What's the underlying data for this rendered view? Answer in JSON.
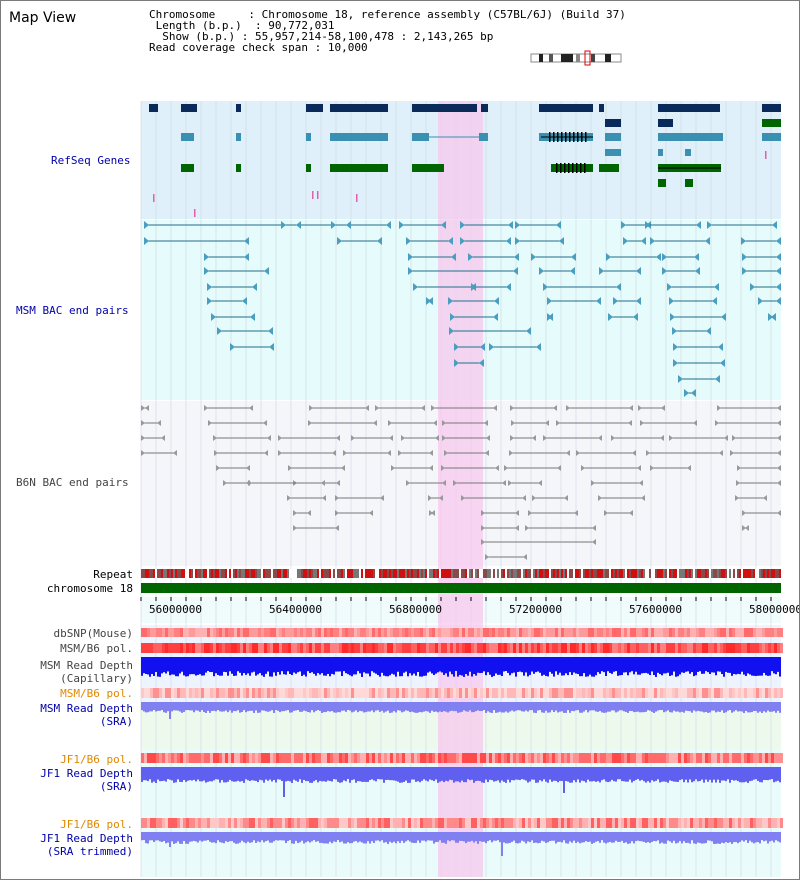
{
  "title": "Map View",
  "header": {
    "chromosome_label": "Chromosome",
    "chromosome_value": "Chromosome 18, reference assembly (C57BL/6J) (Build 37)",
    "length_label": "Length (b.p.)",
    "length_value": "90,772,031",
    "show_label": "Show (b.p.)",
    "show_value": "55,957,214-58,100,478 : 2,143,265 bp",
    "coverage_label": "Read coverage check span",
    "coverage_value": "10,000"
  },
  "tracks": {
    "refseq": "RefSeq Genes",
    "msm_bac": "MSM BAC end pairs",
    "b6n_bac": "B6N BAC end pairs",
    "repeat": "Repeat",
    "chromosome": "chromosome 18",
    "dbsnp": "dbSNP(Mouse)",
    "msm_b6_pol_1": "MSM/B6 pol.",
    "msm_read_depth_cap_1": "MSM Read Depth",
    "msm_read_depth_cap_2": "(Capillary)",
    "msm_b6_pol_2": "MSM/B6 pol.",
    "msm_read_depth_sra_1": "MSM Read Depth",
    "msm_read_depth_sra_2": "(SRA)",
    "jf1_b6_pol_1": "JF1/B6 pol.",
    "jf1_read_depth_sra_1": "JF1 Read Depth",
    "jf1_read_depth_sra_2": "(SRA)",
    "jf1_b6_pol_2": "JF1/B6 pol.",
    "jf1_read_depth_trim_1": "JF1 Read Depth",
    "jf1_read_depth_trim_2": "(SRA trimmed)"
  },
  "axis_ticks": [
    "56000000",
    "56400000",
    "56800000",
    "57200000",
    "57600000",
    "58000000"
  ],
  "colors": {
    "gene_navy": "#0a2a5a",
    "gene_teal": "#3a90b0",
    "gene_green": "#006400",
    "msm_line": "#1f6e8c",
    "b6n_line": "#777777",
    "highlight": "#f7c8ee",
    "label_blue": "#0000aa",
    "label_orange": "#e08800"
  }
}
